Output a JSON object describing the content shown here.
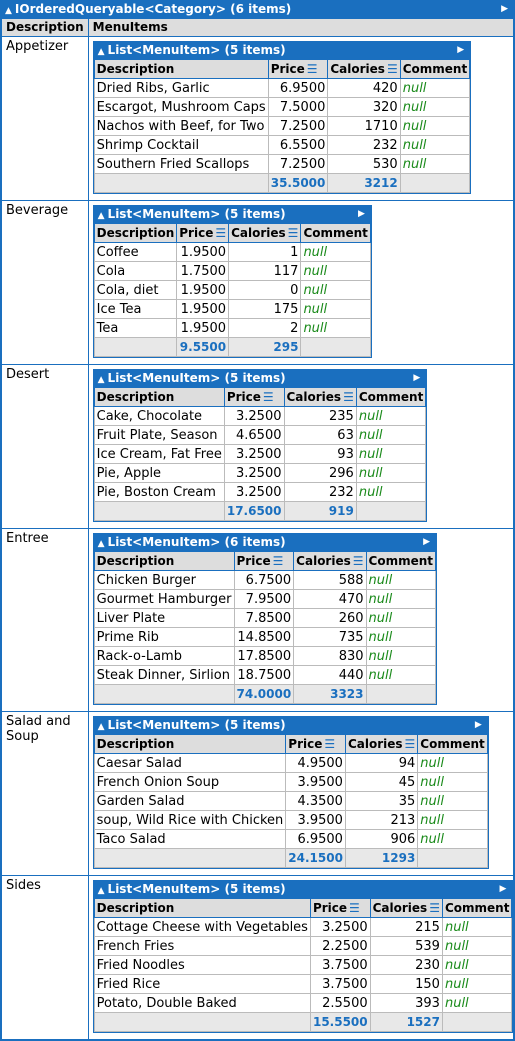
{
  "title": "IOrderedQueryable<Category> (6 items)",
  "columns": [
    "Description",
    "MenuItems"
  ],
  "inner_columns": [
    "Description",
    "Price",
    "Calories",
    "Comment"
  ],
  "null_text": "null",
  "categories": [
    {
      "name": "Appetizer",
      "header": "List<MenuItem> (5 items)",
      "items": [
        {
          "description": "Dried Ribs, Garlic",
          "price": "6.9500",
          "calories": "420"
        },
        {
          "description": "Escargot, Mushroom Caps",
          "price": "7.5000",
          "calories": "320"
        },
        {
          "description": "Nachos with Beef, for Two",
          "price": "7.2500",
          "calories": "1710"
        },
        {
          "description": "Shrimp Cocktail",
          "price": "6.5500",
          "calories": "232"
        },
        {
          "description": "Southern Fried Scallops",
          "price": "7.2500",
          "calories": "530"
        }
      ],
      "total_price": "35.5000",
      "total_calories": "3212"
    },
    {
      "name": "Beverage",
      "header": "List<MenuItem> (5 items)",
      "items": [
        {
          "description": "Coffee",
          "price": "1.9500",
          "calories": "1"
        },
        {
          "description": "Cola",
          "price": "1.7500",
          "calories": "117"
        },
        {
          "description": "Cola, diet",
          "price": "1.9500",
          "calories": "0"
        },
        {
          "description": "Ice Tea",
          "price": "1.9500",
          "calories": "175"
        },
        {
          "description": "Tea",
          "price": "1.9500",
          "calories": "2"
        }
      ],
      "total_price": "9.5500",
      "total_calories": "295"
    },
    {
      "name": "Desert",
      "header": "List<MenuItem> (5 items)",
      "items": [
        {
          "description": "Cake, Chocolate",
          "price": "3.2500",
          "calories": "235"
        },
        {
          "description": "Fruit Plate, Season",
          "price": "4.6500",
          "calories": "63"
        },
        {
          "description": "Ice Cream, Fat Free",
          "price": "3.2500",
          "calories": "93"
        },
        {
          "description": "Pie, Apple",
          "price": "3.2500",
          "calories": "296"
        },
        {
          "description": "Pie, Boston Cream",
          "price": "3.2500",
          "calories": "232"
        }
      ],
      "total_price": "17.6500",
      "total_calories": "919"
    },
    {
      "name": "Entree",
      "header": "List<MenuItem> (6 items)",
      "items": [
        {
          "description": "Chicken Burger",
          "price": "6.7500",
          "calories": "588"
        },
        {
          "description": "Gourmet Hamburger",
          "price": "7.9500",
          "calories": "470"
        },
        {
          "description": "Liver Plate",
          "price": "7.8500",
          "calories": "260"
        },
        {
          "description": "Prime Rib",
          "price": "14.8500",
          "calories": "735"
        },
        {
          "description": "Rack-o-Lamb",
          "price": "17.8500",
          "calories": "830"
        },
        {
          "description": "Steak Dinner, Sirlion",
          "price": "18.7500",
          "calories": "440"
        }
      ],
      "total_price": "74.0000",
      "total_calories": "3323"
    },
    {
      "name": "Salad and Soup",
      "header": "List<MenuItem> (5 items)",
      "items": [
        {
          "description": "Caesar Salad",
          "price": "4.9500",
          "calories": "94"
        },
        {
          "description": "French Onion Soup",
          "price": "3.9500",
          "calories": "45"
        },
        {
          "description": "Garden Salad",
          "price": "4.3500",
          "calories": "35"
        },
        {
          "description": "soup, Wild Rice with Chicken",
          "price": "3.9500",
          "calories": "213"
        },
        {
          "description": "Taco Salad",
          "price": "6.9500",
          "calories": "906"
        }
      ],
      "total_price": "24.1500",
      "total_calories": "1293"
    },
    {
      "name": "Sides",
      "header": "List<MenuItem> (5 items)",
      "items": [
        {
          "description": "Cottage Cheese with Vegetables",
          "price": "3.2500",
          "calories": "215"
        },
        {
          "description": "French Fries",
          "price": "2.2500",
          "calories": "539"
        },
        {
          "description": "Fried Noodles",
          "price": "3.7500",
          "calories": "230"
        },
        {
          "description": "Fried Rice",
          "price": "3.7500",
          "calories": "150"
        },
        {
          "description": "Potato, Double Baked",
          "price": "2.5500",
          "calories": "393"
        }
      ],
      "total_price": "15.5500",
      "total_calories": "1527"
    }
  ]
}
